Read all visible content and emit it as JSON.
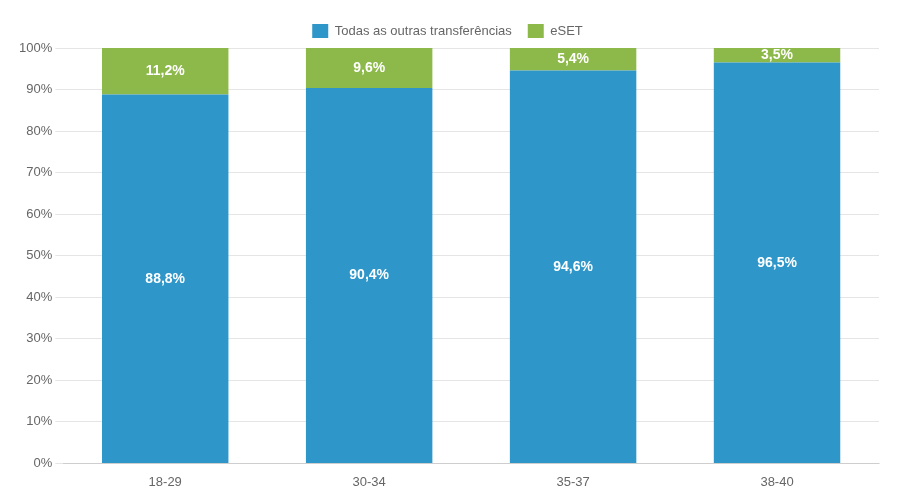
{
  "chart_data": {
    "type": "bar",
    "stacked": true,
    "categories": [
      "18-29",
      "30-34",
      "35-37",
      "38-40"
    ],
    "series": [
      {
        "name": "Todas as outras transferências",
        "color": "#2E96C8",
        "values": [
          88.8,
          90.4,
          94.6,
          96.5
        ],
        "value_labels": [
          "88,8%",
          "90,4%",
          "94,6%",
          "96,5%"
        ]
      },
      {
        "name": "eSET",
        "color": "#8DB84A",
        "values": [
          11.2,
          9.6,
          5.4,
          3.5
        ],
        "value_labels": [
          "11,2%",
          "9,6%",
          "5,4%",
          "3,5%"
        ]
      }
    ],
    "ylim": [
      0,
      100
    ],
    "yticks": [
      {
        "value": 0,
        "label": "0%"
      },
      {
        "value": 10,
        "label": "10%"
      },
      {
        "value": 20,
        "label": "20%"
      },
      {
        "value": 30,
        "label": "30%"
      },
      {
        "value": 40,
        "label": "40%"
      },
      {
        "value": 50,
        "label": "50%"
      },
      {
        "value": 60,
        "label": "60%"
      },
      {
        "value": 70,
        "label": "70%"
      },
      {
        "value": 80,
        "label": "80%"
      },
      {
        "value": 90,
        "label": "90%"
      },
      {
        "value": 100,
        "label": "100%"
      }
    ],
    "grid": true,
    "legend": "top",
    "data_labels": true
  }
}
